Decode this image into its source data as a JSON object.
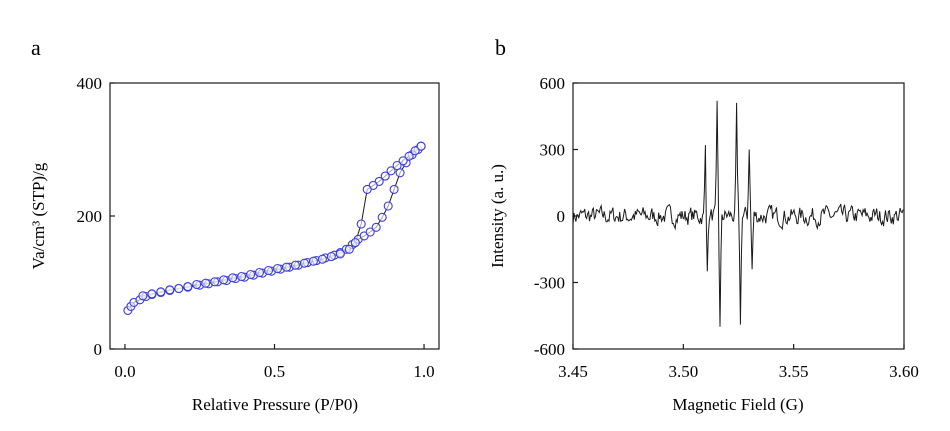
{
  "chart_data": [
    {
      "type": "scatter",
      "panel_label": "a",
      "xlabel": "Relative Pressure (P/P0)",
      "ylabel": "Va/cm³ (STP)/g",
      "xlim": [
        -0.05,
        1.05
      ],
      "ylim": [
        0,
        400
      ],
      "xticks": [
        "0.0",
        "0.5",
        "1.0"
      ],
      "xtick_values": [
        0,
        0.5,
        1.0
      ],
      "yticks": [
        "0",
        "200",
        "400"
      ],
      "ytick_values": [
        0,
        200,
        400
      ],
      "grid": false,
      "series": [
        {
          "marker": "open-circle",
          "color": "#3b3bdb",
          "line_color": "#1a1a1a",
          "x": [
            0.01,
            0.02,
            0.03,
            0.05,
            0.07,
            0.09,
            0.12,
            0.15,
            0.18,
            0.21,
            0.25,
            0.28,
            0.31,
            0.34,
            0.37,
            0.4,
            0.43,
            0.46,
            0.49,
            0.52,
            0.55,
            0.58,
            0.61,
            0.64,
            0.67,
            0.7,
            0.72,
            0.74,
            0.76,
            0.78,
            0.8,
            0.82,
            0.84,
            0.86,
            0.88,
            0.9,
            0.92,
            0.94,
            0.96,
            0.98,
            0.99
          ],
          "y": [
            58,
            64,
            70,
            74,
            79,
            82,
            85,
            88,
            91,
            93,
            96,
            98,
            101,
            103,
            106,
            108,
            111,
            114,
            117,
            120,
            123,
            126,
            130,
            133,
            137,
            141,
            145,
            150,
            157,
            165,
            170,
            176,
            183,
            198,
            215,
            240,
            265,
            280,
            292,
            300,
            305
          ]
        },
        {
          "marker": "open-circle",
          "color": "#3b3bdb",
          "line_color": "#1a1a1a",
          "x": [
            0.99,
            0.97,
            0.95,
            0.93,
            0.91,
            0.89,
            0.87,
            0.85,
            0.83,
            0.81,
            0.79,
            0.77,
            0.75,
            0.72,
            0.69,
            0.66,
            0.63,
            0.6,
            0.57,
            0.54,
            0.51,
            0.48,
            0.45,
            0.42,
            0.39,
            0.36,
            0.33,
            0.3,
            0.27,
            0.24,
            0.21,
            0.18,
            0.15,
            0.12,
            0.09,
            0.06
          ],
          "y": [
            305,
            298,
            290,
            283,
            276,
            268,
            260,
            252,
            246,
            240,
            188,
            160,
            150,
            143,
            139,
            135,
            132,
            129,
            126,
            123,
            121,
            118,
            115,
            112,
            109,
            107,
            104,
            101,
            99,
            97,
            94,
            91,
            89,
            86,
            83,
            80
          ]
        }
      ]
    },
    {
      "type": "line",
      "panel_label": "b",
      "xlabel": "Magnetic Field (G)",
      "ylabel": "Intensity (a. u.)",
      "xlim": [
        3.45,
        3.6
      ],
      "ylim": [
        -600,
        600
      ],
      "xticks": [
        "3.45",
        "3.50",
        "3.55",
        "3.60"
      ],
      "xtick_values": [
        3.45,
        3.5,
        3.55,
        3.6
      ],
      "yticks": [
        "-600",
        "-300",
        "0",
        "300",
        "600"
      ],
      "ytick_values": [
        -600,
        -300,
        0,
        300,
        600
      ],
      "grid": false,
      "series": [
        {
          "color": "#1a1a1a",
          "noise_amplitude": 40,
          "peaks": [
            {
              "x": 3.5098,
              "y": 320
            },
            {
              "x": 3.5108,
              "y": -250
            },
            {
              "x": 3.5153,
              "y": 520
            },
            {
              "x": 3.5168,
              "y": -500
            },
            {
              "x": 3.5243,
              "y": 510
            },
            {
              "x": 3.5258,
              "y": -490
            },
            {
              "x": 3.5298,
              "y": 300
            },
            {
              "x": 3.5312,
              "y": -240
            }
          ]
        }
      ]
    }
  ]
}
